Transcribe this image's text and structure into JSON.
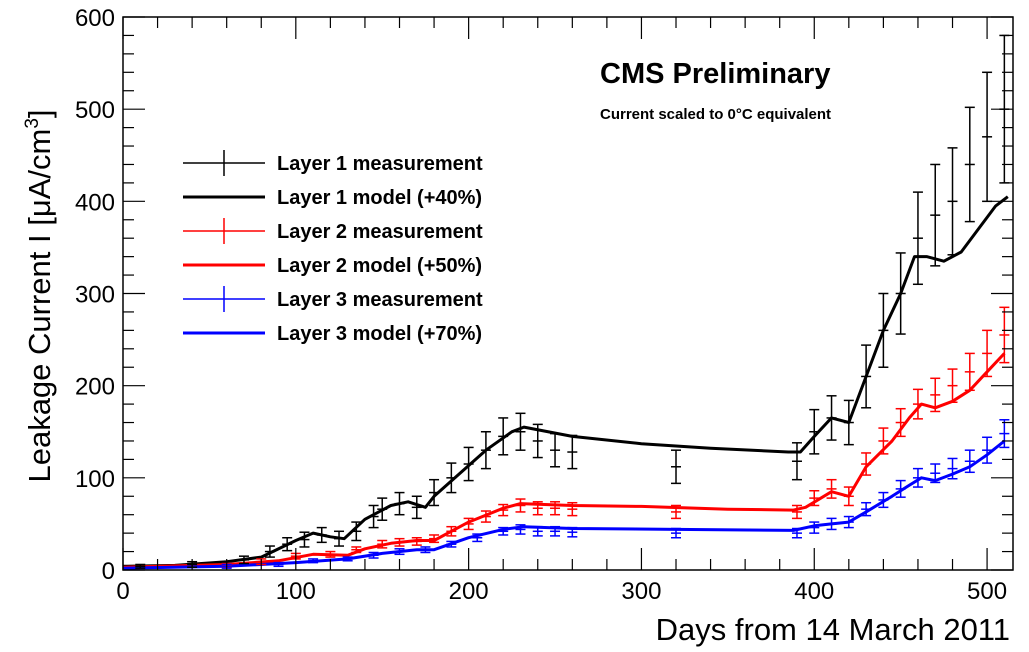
{
  "chart_data": {
    "type": "line",
    "xlabel": "Days from 14 March 2011",
    "ylabel_text": "Leakage Current I [μA/cm",
    "ylabel_sup": "3",
    "ylabel_close": "]",
    "xlim": [
      0,
      515
    ],
    "ylim": [
      0,
      600
    ],
    "x_ticks": [
      0,
      100,
      200,
      300,
      400,
      500
    ],
    "y_ticks": [
      0,
      100,
      200,
      300,
      400,
      500,
      600
    ],
    "grid": false,
    "legend_position": "upper-left",
    "annotations": {
      "title": "CMS Preliminary",
      "subtitle": "Current scaled to 0°C equivalent"
    },
    "series": [
      {
        "name": "Layer 1 measurement",
        "kind": "measurement",
        "color": "#000000",
        "points": [
          [
            10,
            4
          ],
          [
            40,
            6
          ],
          [
            70,
            11
          ],
          [
            85,
            20
          ],
          [
            95,
            28
          ],
          [
            105,
            33
          ],
          [
            115,
            38
          ],
          [
            125,
            34
          ],
          [
            135,
            42
          ],
          [
            145,
            58
          ],
          [
            150,
            66
          ],
          [
            160,
            72
          ],
          [
            170,
            68
          ],
          [
            180,
            84
          ],
          [
            190,
            100
          ],
          [
            200,
            115
          ],
          [
            210,
            130
          ],
          [
            220,
            145
          ],
          [
            230,
            150
          ],
          [
            240,
            140
          ],
          [
            250,
            130
          ],
          [
            260,
            128
          ],
          [
            320,
            112
          ],
          [
            390,
            118
          ],
          [
            400,
            150
          ],
          [
            410,
            165
          ],
          [
            420,
            160
          ],
          [
            430,
            210
          ],
          [
            440,
            260
          ],
          [
            450,
            300
          ],
          [
            460,
            360
          ],
          [
            470,
            385
          ],
          [
            480,
            400
          ],
          [
            490,
            440
          ],
          [
            500,
            470
          ],
          [
            510,
            500
          ]
        ],
        "errors": [
          [
            10,
            2
          ],
          [
            40,
            3
          ],
          [
            70,
            4
          ],
          [
            85,
            6
          ],
          [
            95,
            7
          ],
          [
            105,
            8
          ],
          [
            115,
            8
          ],
          [
            125,
            8
          ],
          [
            135,
            10
          ],
          [
            145,
            12
          ],
          [
            150,
            12
          ],
          [
            160,
            12
          ],
          [
            170,
            12
          ],
          [
            180,
            14
          ],
          [
            190,
            16
          ],
          [
            200,
            18
          ],
          [
            210,
            20
          ],
          [
            220,
            20
          ],
          [
            230,
            20
          ],
          [
            240,
            18
          ],
          [
            250,
            18
          ],
          [
            260,
            18
          ],
          [
            320,
            18
          ],
          [
            390,
            20
          ],
          [
            400,
            24
          ],
          [
            410,
            24
          ],
          [
            420,
            24
          ],
          [
            430,
            34
          ],
          [
            440,
            40
          ],
          [
            450,
            44
          ],
          [
            460,
            50
          ],
          [
            470,
            55
          ],
          [
            480,
            58
          ],
          [
            490,
            62
          ],
          [
            500,
            70
          ],
          [
            510,
            80
          ]
        ]
      },
      {
        "name": "Layer 1 model (+40%)",
        "kind": "model",
        "color": "#000000",
        "points": [
          [
            0,
            4
          ],
          [
            30,
            5
          ],
          [
            60,
            9
          ],
          [
            80,
            14
          ],
          [
            100,
            32
          ],
          [
            110,
            40
          ],
          [
            120,
            36
          ],
          [
            128,
            34
          ],
          [
            140,
            55
          ],
          [
            155,
            70
          ],
          [
            165,
            74
          ],
          [
            175,
            68
          ],
          [
            180,
            80
          ],
          [
            195,
            105
          ],
          [
            210,
            130
          ],
          [
            225,
            150
          ],
          [
            232,
            155
          ],
          [
            260,
            145
          ],
          [
            300,
            137
          ],
          [
            340,
            132
          ],
          [
            385,
            128
          ],
          [
            392,
            128
          ],
          [
            400,
            145
          ],
          [
            410,
            165
          ],
          [
            420,
            160
          ],
          [
            430,
            210
          ],
          [
            440,
            260
          ],
          [
            450,
            300
          ],
          [
            458,
            340
          ],
          [
            465,
            340
          ],
          [
            475,
            335
          ],
          [
            485,
            345
          ],
          [
            495,
            370
          ],
          [
            505,
            395
          ],
          [
            512,
            405
          ]
        ]
      },
      {
        "name": "Layer 2 measurement",
        "kind": "measurement",
        "color": "#ff0000",
        "points": [
          [
            60,
            5
          ],
          [
            80,
            9
          ],
          [
            100,
            15
          ],
          [
            120,
            17
          ],
          [
            135,
            22
          ],
          [
            150,
            28
          ],
          [
            160,
            30
          ],
          [
            170,
            31
          ],
          [
            180,
            34
          ],
          [
            190,
            42
          ],
          [
            200,
            50
          ],
          [
            210,
            58
          ],
          [
            220,
            65
          ],
          [
            230,
            70
          ],
          [
            240,
            67
          ],
          [
            250,
            67
          ],
          [
            260,
            66
          ],
          [
            320,
            63
          ],
          [
            390,
            63
          ],
          [
            400,
            78
          ],
          [
            410,
            88
          ],
          [
            420,
            80
          ],
          [
            430,
            115
          ],
          [
            440,
            140
          ],
          [
            450,
            160
          ],
          [
            460,
            180
          ],
          [
            470,
            190
          ],
          [
            480,
            200
          ],
          [
            490,
            215
          ],
          [
            500,
            235
          ],
          [
            510,
            255
          ]
        ],
        "errors": [
          [
            60,
            2
          ],
          [
            80,
            3
          ],
          [
            100,
            3
          ],
          [
            120,
            3
          ],
          [
            135,
            3
          ],
          [
            150,
            4
          ],
          [
            160,
            4
          ],
          [
            170,
            4
          ],
          [
            180,
            4
          ],
          [
            190,
            5
          ],
          [
            200,
            6
          ],
          [
            210,
            6
          ],
          [
            220,
            6
          ],
          [
            230,
            7
          ],
          [
            240,
            7
          ],
          [
            250,
            7
          ],
          [
            260,
            7
          ],
          [
            320,
            7
          ],
          [
            390,
            7
          ],
          [
            400,
            8
          ],
          [
            410,
            10
          ],
          [
            420,
            10
          ],
          [
            430,
            12
          ],
          [
            440,
            14
          ],
          [
            450,
            15
          ],
          [
            460,
            16
          ],
          [
            470,
            18
          ],
          [
            480,
            18
          ],
          [
            490,
            20
          ],
          [
            500,
            25
          ],
          [
            510,
            30
          ]
        ]
      },
      {
        "name": "Layer 2 model (+50%)",
        "kind": "model",
        "color": "#ff0000",
        "points": [
          [
            0,
            3
          ],
          [
            60,
            6
          ],
          [
            90,
            10
          ],
          [
            110,
            17
          ],
          [
            130,
            16
          ],
          [
            140,
            23
          ],
          [
            155,
            29
          ],
          [
            170,
            32
          ],
          [
            180,
            32
          ],
          [
            200,
            52
          ],
          [
            220,
            67
          ],
          [
            230,
            72
          ],
          [
            260,
            70
          ],
          [
            300,
            69
          ],
          [
            350,
            66
          ],
          [
            388,
            65
          ],
          [
            395,
            68
          ],
          [
            410,
            85
          ],
          [
            420,
            80
          ],
          [
            430,
            112
          ],
          [
            445,
            140
          ],
          [
            455,
            165
          ],
          [
            462,
            180
          ],
          [
            470,
            176
          ],
          [
            480,
            183
          ],
          [
            490,
            195
          ],
          [
            500,
            215
          ],
          [
            510,
            235
          ]
        ]
      },
      {
        "name": "Layer 3 measurement",
        "kind": "measurement",
        "color": "#0000ff",
        "points": [
          [
            60,
            4
          ],
          [
            90,
            6
          ],
          [
            110,
            10
          ],
          [
            130,
            12
          ],
          [
            145,
            16
          ],
          [
            160,
            20
          ],
          [
            175,
            22
          ],
          [
            190,
            28
          ],
          [
            205,
            35
          ],
          [
            220,
            42
          ],
          [
            230,
            44
          ],
          [
            240,
            42
          ],
          [
            250,
            42
          ],
          [
            260,
            41
          ],
          [
            320,
            40
          ],
          [
            390,
            40
          ],
          [
            400,
            46
          ],
          [
            410,
            50
          ],
          [
            420,
            52
          ],
          [
            430,
            66
          ],
          [
            440,
            76
          ],
          [
            450,
            88
          ],
          [
            460,
            100
          ],
          [
            470,
            105
          ],
          [
            480,
            110
          ],
          [
            490,
            118
          ],
          [
            500,
            130
          ],
          [
            510,
            148
          ]
        ],
        "errors": [
          [
            60,
            2
          ],
          [
            90,
            2
          ],
          [
            110,
            2
          ],
          [
            130,
            2
          ],
          [
            145,
            3
          ],
          [
            160,
            3
          ],
          [
            175,
            3
          ],
          [
            190,
            3
          ],
          [
            205,
            4
          ],
          [
            220,
            4
          ],
          [
            230,
            5
          ],
          [
            240,
            5
          ],
          [
            250,
            5
          ],
          [
            260,
            5
          ],
          [
            320,
            5
          ],
          [
            390,
            5
          ],
          [
            400,
            6
          ],
          [
            410,
            6
          ],
          [
            420,
            6
          ],
          [
            430,
            7
          ],
          [
            440,
            8
          ],
          [
            450,
            9
          ],
          [
            460,
            10
          ],
          [
            470,
            10
          ],
          [
            480,
            11
          ],
          [
            490,
            12
          ],
          [
            500,
            14
          ],
          [
            510,
            15
          ]
        ]
      },
      {
        "name": "Layer 3 model (+70%)",
        "kind": "model",
        "color": "#0000ff",
        "points": [
          [
            0,
            2
          ],
          [
            60,
            4
          ],
          [
            100,
            8
          ],
          [
            130,
            12
          ],
          [
            150,
            18
          ],
          [
            170,
            22
          ],
          [
            180,
            22
          ],
          [
            200,
            35
          ],
          [
            220,
            44
          ],
          [
            232,
            47
          ],
          [
            260,
            45
          ],
          [
            320,
            44
          ],
          [
            388,
            43
          ],
          [
            400,
            48
          ],
          [
            410,
            50
          ],
          [
            420,
            52
          ],
          [
            430,
            63
          ],
          [
            445,
            80
          ],
          [
            455,
            92
          ],
          [
            462,
            100
          ],
          [
            470,
            97
          ],
          [
            480,
            104
          ],
          [
            490,
            112
          ],
          [
            500,
            125
          ],
          [
            510,
            140
          ]
        ]
      }
    ]
  }
}
